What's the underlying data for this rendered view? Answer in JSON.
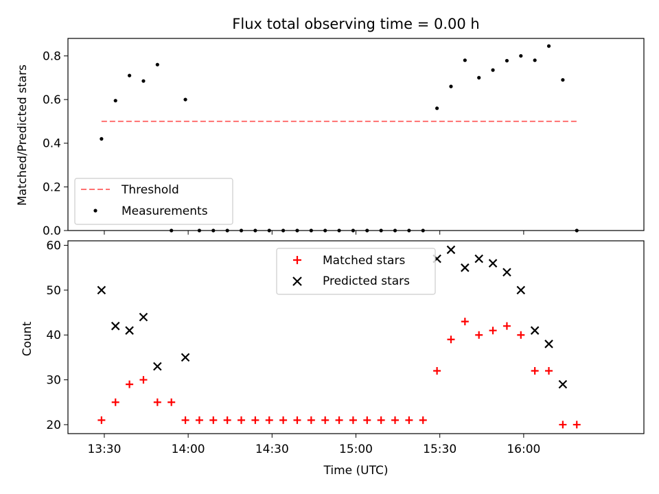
{
  "chart_data": [
    {
      "type": "scatter",
      "title": "Flux total observing time = 0.00 h",
      "xlabel": "",
      "ylabel": "Matched/Predicted stars",
      "xlim": [
        "13:17",
        "16:43"
      ],
      "ylim": [
        0,
        0.88
      ],
      "yticks": [
        0.0,
        0.2,
        0.4,
        0.6,
        0.8
      ],
      "ytick_labels": [
        "0.0",
        "0.2",
        "0.4",
        "0.6",
        "0.8"
      ],
      "xticks": [
        "13:30",
        "14:00",
        "14:30",
        "15:00",
        "15:30",
        "16:00"
      ],
      "grid": false,
      "legend_position": "lower-left",
      "series": [
        {
          "name": "Threshold",
          "style": "dashed-line",
          "color": "#ff7070",
          "x": [
            "13:29",
            "16:19"
          ],
          "y": [
            0.5,
            0.5
          ]
        },
        {
          "name": "Measurements",
          "style": "dot",
          "color": "#000000",
          "x": [
            "13:29",
            "13:34",
            "13:39",
            "13:44",
            "13:49",
            "13:54",
            "13:59",
            "14:04",
            "14:09",
            "14:14",
            "14:19",
            "14:24",
            "14:29",
            "14:34",
            "14:39",
            "14:44",
            "14:49",
            "14:54",
            "14:59",
            "15:04",
            "15:09",
            "15:14",
            "15:19",
            "15:24",
            "15:29",
            "15:34",
            "15:39",
            "15:44",
            "15:49",
            "15:54",
            "15:59",
            "16:04",
            "16:09",
            "16:14",
            "16:19"
          ],
          "y": [
            0.42,
            0.595,
            0.71,
            0.685,
            0.76,
            0.0,
            0.6,
            0.0,
            0.0,
            0.0,
            0.0,
            0.0,
            0.0,
            0.0,
            0.0,
            0.0,
            0.0,
            0.0,
            0.0,
            0.0,
            0.0,
            0.0,
            0.0,
            0.0,
            0.56,
            0.66,
            0.78,
            0.7,
            0.735,
            0.778,
            0.8,
            0.78,
            0.845,
            0.69,
            0.0
          ]
        }
      ]
    },
    {
      "type": "scatter",
      "title": "",
      "xlabel": "Time (UTC)",
      "ylabel": "Count",
      "xlim": [
        "13:17",
        "16:43"
      ],
      "ylim": [
        18,
        61
      ],
      "yticks": [
        20,
        30,
        40,
        50,
        60
      ],
      "ytick_labels": [
        "20",
        "30",
        "40",
        "50",
        "60"
      ],
      "xticks": [
        "13:30",
        "14:00",
        "14:30",
        "15:00",
        "15:30",
        "16:00"
      ],
      "grid": false,
      "legend_position": "upper-center",
      "series": [
        {
          "name": "Matched stars",
          "marker": "plus",
          "color": "#ff0000",
          "x": [
            "13:29",
            "13:34",
            "13:39",
            "13:44",
            "13:49",
            "13:54",
            "13:59",
            "14:04",
            "14:09",
            "14:14",
            "14:19",
            "14:24",
            "14:29",
            "14:34",
            "14:39",
            "14:44",
            "14:49",
            "14:54",
            "14:59",
            "15:04",
            "15:09",
            "15:14",
            "15:19",
            "15:24",
            "15:29",
            "15:34",
            "15:39",
            "15:44",
            "15:49",
            "15:54",
            "15:59",
            "16:04",
            "16:09",
            "16:14",
            "16:19"
          ],
          "y": [
            21,
            25,
            29,
            30,
            25,
            25,
            21,
            21,
            21,
            21,
            21,
            21,
            21,
            21,
            21,
            21,
            21,
            21,
            21,
            21,
            21,
            21,
            21,
            21,
            32,
            39,
            43,
            40,
            41,
            42,
            40,
            32,
            32,
            20,
            20
          ]
        },
        {
          "name": "Predicted stars",
          "marker": "x",
          "color": "#000000",
          "x": [
            "13:29",
            "13:34",
            "13:39",
            "13:44",
            "13:49",
            "13:59",
            "15:29",
            "15:34",
            "15:39",
            "15:44",
            "15:49",
            "15:54",
            "15:59",
            "16:04",
            "16:09",
            "16:14"
          ],
          "y": [
            50,
            42,
            41,
            44,
            33,
            35,
            57,
            59,
            55,
            57,
            56,
            54,
            50,
            41,
            38,
            29
          ]
        }
      ]
    }
  ]
}
